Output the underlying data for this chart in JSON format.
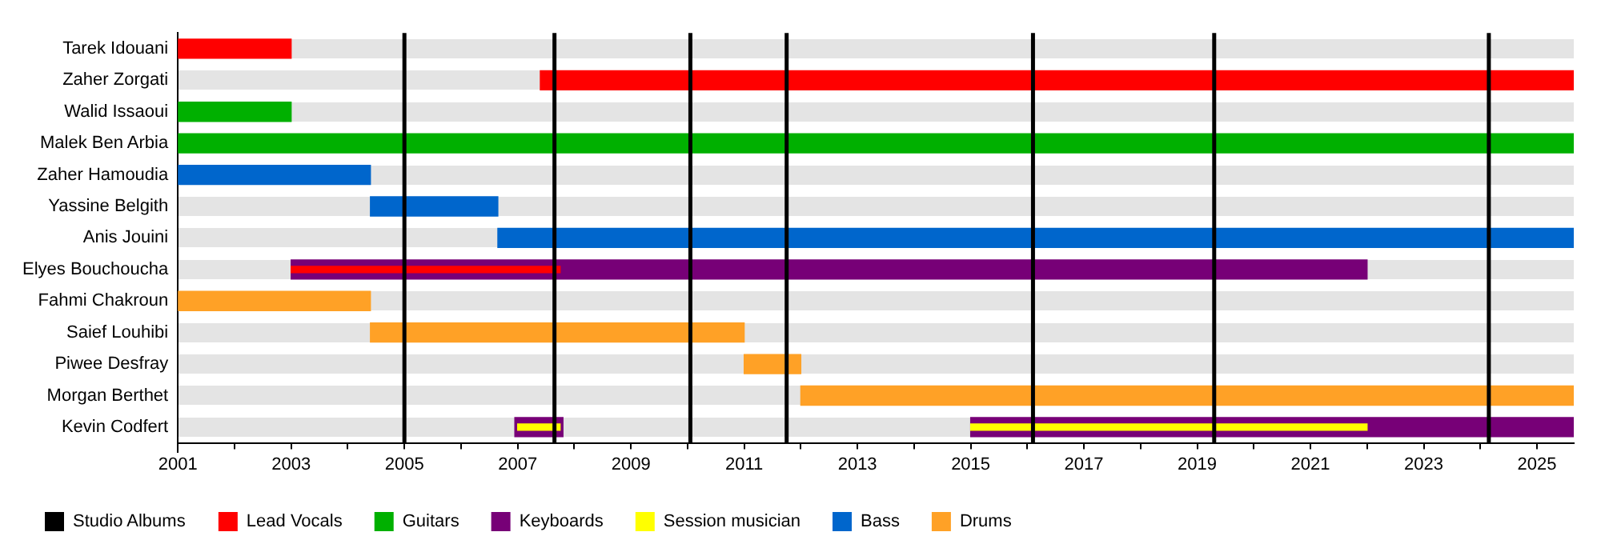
{
  "chart_data": {
    "type": "bar",
    "orientation": "horizontal",
    "categories": [
      "Tarek Idouani",
      "Zaher Zorgati",
      "Walid Issaoui",
      "Malek Ben Arbia",
      "Zaher Hamoudia",
      "Yassine Belgith",
      "Anis Jouini",
      "Elyes Bouchoucha",
      "Fahmi Chakroun",
      "Saief Louhibi",
      "Piwee Desfray",
      "Morgan Berthet",
      "Kevin Codfert"
    ],
    "series": [
      {
        "name": "Lead Vocals",
        "color": "#ff0000",
        "values": [
          2,
          18.25,
          null,
          null,
          null,
          null,
          null,
          4.75,
          null,
          null,
          null,
          null,
          null
        ],
        "base": [
          2001,
          2007.4,
          null,
          null,
          null,
          null,
          null,
          2003,
          null,
          null,
          null,
          null,
          null
        ]
      },
      {
        "name": "Guitars",
        "color": "#00b000",
        "values": [
          null,
          null,
          2,
          24.65,
          null,
          null,
          null,
          null,
          null,
          null,
          null,
          null,
          null
        ],
        "base": [
          null,
          null,
          2001,
          2001,
          null,
          null,
          null,
          null,
          null,
          null,
          null,
          null,
          null
        ]
      },
      {
        "name": "Keyboards",
        "color": "#770077",
        "values": [
          null,
          null,
          null,
          null,
          null,
          null,
          null,
          19,
          null,
          null,
          null,
          null,
          0.85
        ],
        "base": [
          null,
          null,
          null,
          null,
          null,
          null,
          null,
          2003,
          null,
          null,
          null,
          null,
          2006.95
        ]
      },
      {
        "color": "#770077",
        "values": [
          null,
          null,
          null,
          null,
          null,
          null,
          null,
          null,
          null,
          null,
          null,
          null,
          10.65
        ],
        "base": [
          null,
          null,
          null,
          null,
          null,
          null,
          null,
          null,
          null,
          null,
          null,
          null,
          2015
        ]
      },
      {
        "name": "Session musician",
        "color": "#ffff00",
        "values": [
          null,
          null,
          null,
          null,
          null,
          null,
          null,
          null,
          null,
          null,
          null,
          null,
          0.75
        ],
        "base": [
          null,
          null,
          null,
          null,
          null,
          null,
          null,
          null,
          null,
          null,
          null,
          null,
          2007
        ]
      },
      {
        "color": "#ffff00",
        "values": [
          null,
          null,
          null,
          null,
          null,
          null,
          null,
          null,
          null,
          null,
          null,
          null,
          7
        ],
        "base": [
          null,
          null,
          null,
          null,
          null,
          null,
          null,
          null,
          null,
          null,
          null,
          null,
          2015
        ]
      },
      {
        "name": "Bass",
        "color": "#0066cc",
        "values": [
          null,
          null,
          null,
          null,
          3.4,
          2.25,
          19,
          null,
          null,
          null,
          null,
          null,
          null
        ],
        "base": [
          null,
          null,
          null,
          null,
          2001,
          2004.4,
          2006.65,
          null,
          null,
          null,
          null,
          null,
          null
        ]
      },
      {
        "name": "Drums",
        "color": "#ffa126",
        "values": [
          null,
          null,
          null,
          null,
          null,
          null,
          null,
          null,
          3.4,
          6.6,
          1,
          13.65,
          null
        ],
        "base": [
          null,
          null,
          null,
          null,
          null,
          null,
          null,
          null,
          2001,
          2004.4,
          2011,
          2012,
          null
        ]
      }
    ],
    "xlim": [
      2001,
      2025.65
    ],
    "xticks": [
      2001,
      {
        "value": 2002,
        "label": null
      },
      2003,
      {
        "value": 2004,
        "label": null
      },
      2005,
      {
        "value": 2006,
        "label": null
      },
      2007,
      {
        "value": 2008,
        "label": null
      },
      2009,
      {
        "value": 2010,
        "label": null
      },
      2011,
      {
        "value": 2012,
        "label": null
      },
      2013,
      {
        "value": 2014,
        "label": null
      },
      2015,
      {
        "value": 2016,
        "label": null
      },
      2017,
      {
        "value": 2018,
        "label": null
      },
      2019,
      {
        "value": 2020,
        "label": null
      },
      2021,
      {
        "value": 2022,
        "label": null
      },
      2023,
      {
        "value": 2024,
        "label": null
      },
      2025
    ],
    "ref_lines": [
      {
        "axis": "x",
        "value": 2005,
        "label": "Studio Albums",
        "color": "#000000"
      },
      {
        "axis": "x",
        "value": 2007.65,
        "color": "#000000"
      },
      {
        "axis": "x",
        "value": 2010.05,
        "color": "#000000"
      },
      {
        "axis": "x",
        "value": 2011.75,
        "color": "#000000"
      },
      {
        "axis": "x",
        "value": 2016.1,
        "color": "#000000"
      },
      {
        "axis": "x",
        "value": 2019.3,
        "color": "#000000"
      },
      {
        "axis": "x",
        "value": 2024.15,
        "color": "#000000"
      }
    ],
    "grid": "y",
    "legend": "bottom"
  }
}
